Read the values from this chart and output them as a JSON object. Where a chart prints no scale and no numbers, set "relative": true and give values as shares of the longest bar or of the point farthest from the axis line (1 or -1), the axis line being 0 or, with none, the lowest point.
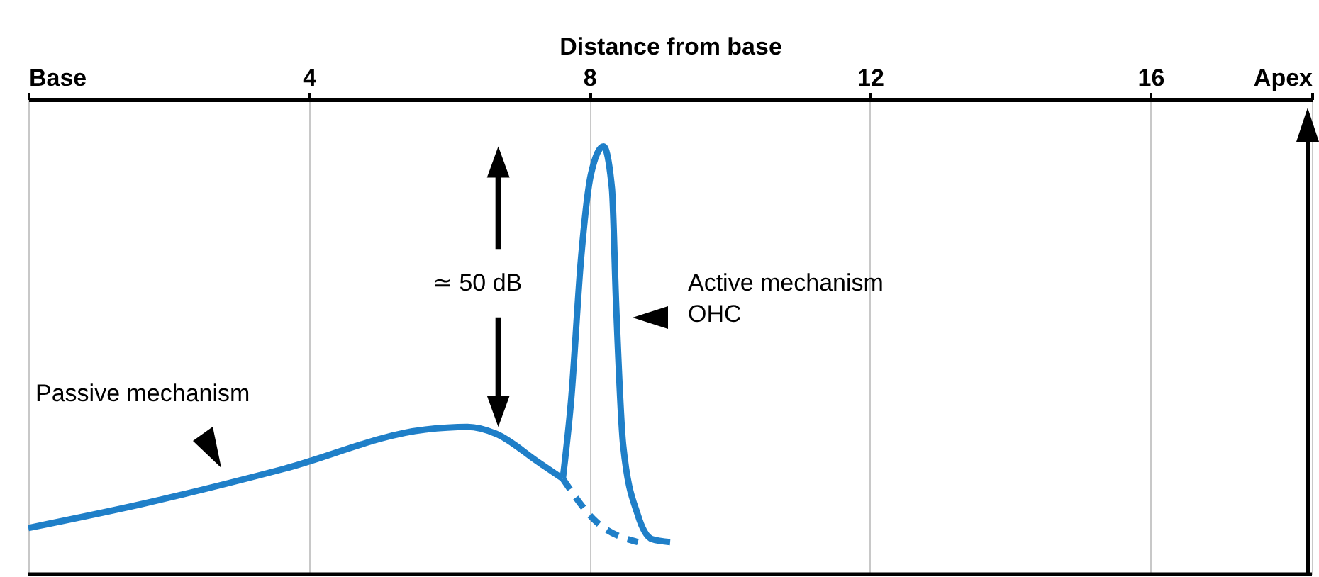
{
  "chart_data": {
    "type": "line",
    "relative": true,
    "xlabel": "Distance from base",
    "xlim": [
      0,
      18.3
    ],
    "xticks": [
      {
        "value": 0,
        "label": "Base"
      },
      4,
      8,
      12,
      16,
      {
        "value": 18.3,
        "label": "Apex"
      }
    ],
    "grid": "x",
    "tick_labels": "x",
    "marker": "none",
    "series": [
      {
        "color": "#1f7fc8",
        "line_style": "solid",
        "x": [
          0,
          1.62,
          3.64,
          5.66,
          6.26,
          6.67,
          7.27,
          7.62
        ],
        "values": [
          0.108,
          0.164,
          0.246,
          0.338,
          0.344,
          0.328,
          0.262,
          0.223
        ]
      },
      {
        "color": "#1f7fc8",
        "line_style": "dashed",
        "x": [
          7.62,
          8.08,
          8.69
        ],
        "values": [
          0.223,
          0.125,
          0.075
        ]
      },
      {
        "color": "#1f7fc8",
        "line_style": "solid",
        "x": [
          7.62,
          7.74,
          7.88,
          8.02,
          8.2,
          8.32,
          8.38,
          8.48,
          8.69,
          8.89,
          9.15
        ],
        "values": [
          0.223,
          0.41,
          0.738,
          0.934,
          1,
          0.902,
          0.63,
          0.302,
          0.138,
          0.082,
          0.075
        ]
      }
    ],
    "annotations": [
      "Passive mechanism",
      "≃ 50 dB",
      "Active mechanism\nOHC"
    ]
  }
}
